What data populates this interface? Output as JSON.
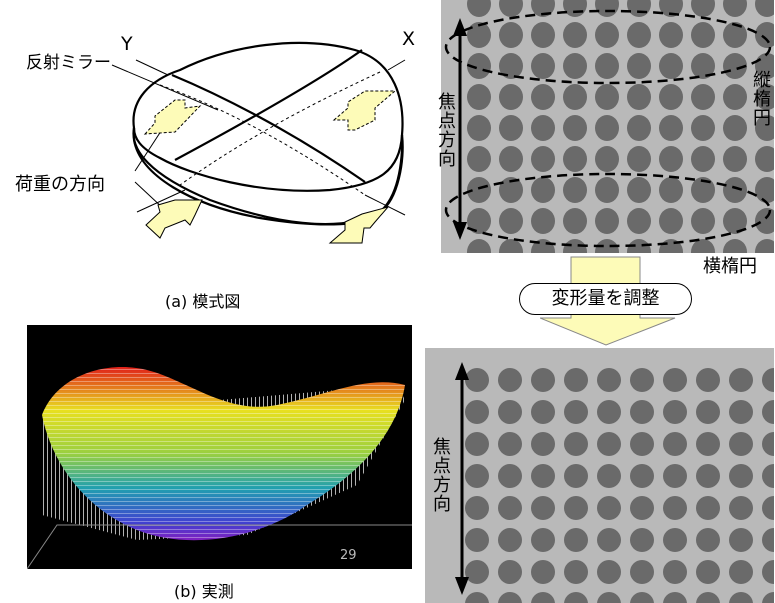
{
  "panel_a": {
    "caption": "(a) 模式図",
    "axis_x": "X",
    "axis_y": "Y",
    "label_mirror": "反射ミラー",
    "label_load": "荷重の方向",
    "arrow_color": "#fdfbb8"
  },
  "panel_b": {
    "caption": "(b) 実測",
    "corner_value": "29"
  },
  "right": {
    "focus_label_top": "焦点方向",
    "focus_label_bottom": "焦点方向",
    "vertical_ellipse": "縦楕円",
    "horizontal_ellipse": "横楕円",
    "adjust_label": "変形量を調整",
    "arrow_color": "#fdfbb8"
  }
}
